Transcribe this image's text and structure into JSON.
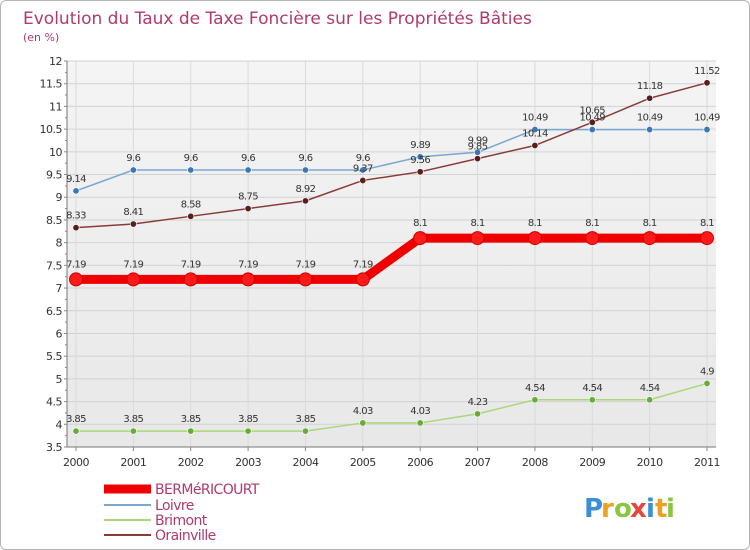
{
  "chart_data": {
    "type": "line",
    "title": "Evolution du Taux de Taxe Foncière sur les Propriétés Bâties",
    "subtitle": "(en %)",
    "xlabel": "",
    "ylabel": "",
    "x": [
      "2000",
      "2001",
      "2002",
      "2003",
      "2004",
      "2005",
      "2006",
      "2007",
      "2008",
      "2009",
      "2010",
      "2011"
    ],
    "ylim": [
      3.5,
      12
    ],
    "yticks": [
      "3.5",
      "4",
      "4.5",
      "5",
      "5.5",
      "6",
      "6.5",
      "7",
      "7.5",
      "8",
      "8.5",
      "9",
      "9.5",
      "10",
      "10.5",
      "11",
      "11.5",
      "12"
    ],
    "grid": true,
    "legend_position": "bottom-left",
    "series": [
      {
        "name": "BERMéRICOURT",
        "color": "#ee0000",
        "values": [
          7.19,
          7.19,
          7.19,
          7.19,
          7.19,
          7.19,
          8.1,
          8.1,
          8.1,
          8.1,
          8.1,
          8.1
        ],
        "labels": [
          "7.19",
          "7.19",
          "7.19",
          "7.19",
          "7.19",
          "7.19",
          "8.1",
          "8.1",
          "8.1",
          "8.1",
          "8.1",
          "8.1"
        ]
      },
      {
        "name": "Loivre",
        "color": "#7aa7d1",
        "values": [
          9.14,
          9.6,
          9.6,
          9.6,
          9.6,
          9.6,
          9.89,
          9.99,
          10.49,
          10.49,
          10.49,
          10.49
        ],
        "labels": [
          "9.14",
          "9.6",
          "9.6",
          "9.6",
          "9.6",
          "9.6",
          "9.89",
          "9.99",
          "10.49",
          "10.49",
          "10.49",
          "10.49"
        ]
      },
      {
        "name": "Brimont",
        "color": "#a8d878",
        "values": [
          3.85,
          3.85,
          3.85,
          3.85,
          3.85,
          4.03,
          4.03,
          4.23,
          4.54,
          4.54,
          4.54,
          4.9
        ],
        "labels": [
          "3.85",
          "3.85",
          "3.85",
          "3.85",
          "3.85",
          "4.03",
          "4.03",
          "4.23",
          "4.54",
          "4.54",
          "4.54",
          "4.9"
        ]
      },
      {
        "name": "Orainville",
        "color": "#8b3a3a",
        "values": [
          8.33,
          8.41,
          8.58,
          8.75,
          8.92,
          9.37,
          9.56,
          9.85,
          10.14,
          10.65,
          11.18,
          11.52
        ],
        "labels": [
          "8.33",
          "8.41",
          "8.58",
          "8.75",
          "8.92",
          "9.37",
          "9.56",
          "9.85",
          "10.14",
          "10.65",
          "11.18",
          "11.52"
        ]
      }
    ]
  },
  "brand": {
    "letters": [
      "P",
      "r",
      "o",
      "x",
      "i",
      "t",
      "i"
    ],
    "colors": [
      "#3a8fd8",
      "#f0a020",
      "#8cc63f",
      "#e8463c",
      "#3a8fd8",
      "#f0a020",
      "#8cc63f"
    ]
  }
}
